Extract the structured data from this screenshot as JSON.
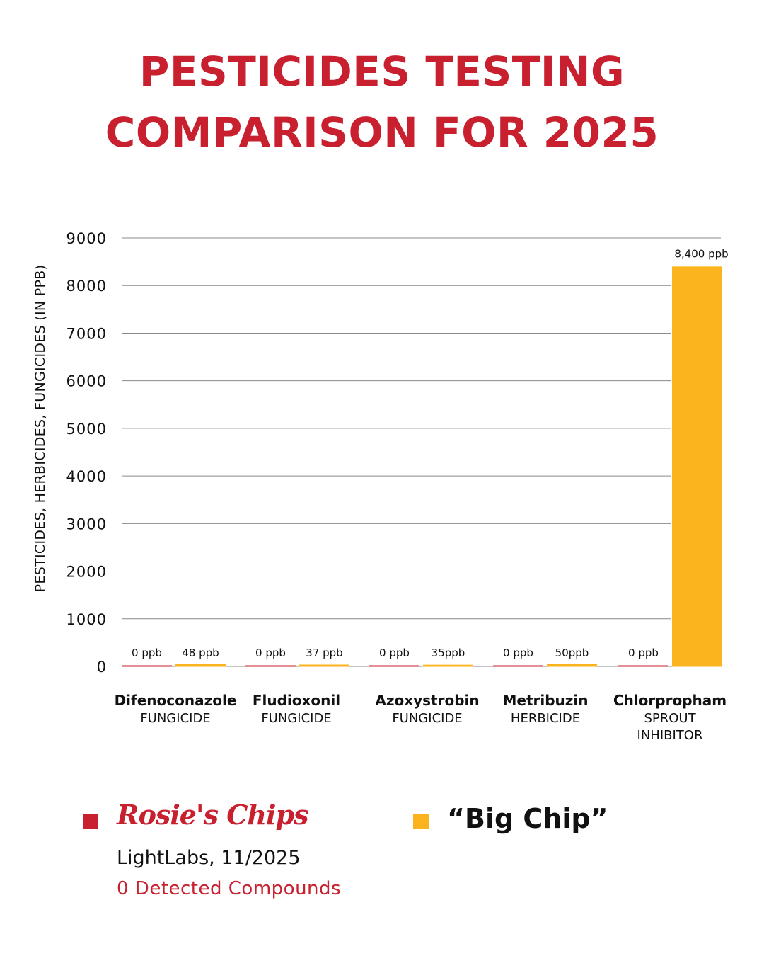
{
  "title": {
    "line1": "PESTICIDES TESTING",
    "line2": "COMPARISON FOR 2025"
  },
  "colors": {
    "title": "#c8202f",
    "rosies": "#c8202f",
    "bigchip": "#fbb41d",
    "grid": "#888888",
    "text": "#111111"
  },
  "chart_data": {
    "type": "bar",
    "title": "PESTICIDES TESTING COMPARISON FOR 2025",
    "xlabel": "",
    "ylabel": "PESTICIDES, HERBICIDES, FUNGICIDES (IN PPB)",
    "ylim": [
      0,
      9000
    ],
    "yticks": [
      0,
      1000,
      2000,
      3000,
      4000,
      5000,
      6000,
      7000,
      8000,
      9000
    ],
    "grid": true,
    "legend_position": "bottom",
    "categories": [
      {
        "name": "Difenoconazole",
        "type": "FUNGICIDE"
      },
      {
        "name": "Fludioxonil",
        "type": "FUNGICIDE"
      },
      {
        "name": "Azoxystrobin",
        "type": "FUNGICIDE"
      },
      {
        "name": "Metribuzin",
        "type": "HERBICIDE"
      },
      {
        "name": "Chlorpropham",
        "type": "SPROUT INHIBITOR",
        "type_lines": [
          "SPROUT",
          "INHIBITOR"
        ]
      }
    ],
    "series": [
      {
        "name": "Rosie's Chips",
        "color": "#c8202f",
        "values": [
          0,
          0,
          0,
          0,
          0
        ],
        "labels": [
          "0 ppb",
          "0 ppb",
          "0 ppb",
          "0 ppb",
          "0 ppb"
        ]
      },
      {
        "name": "“Big Chip”",
        "color": "#fbb41d",
        "values": [
          48,
          37,
          35,
          50,
          8400
        ],
        "labels": [
          "48 ppb",
          "37 ppb",
          "35ppb",
          "50ppb",
          "8,400 ppb"
        ]
      }
    ]
  },
  "legend": {
    "rosies": {
      "name": "Rosie's Chips",
      "source": "LightLabs, 11/2025",
      "detected": "0 Detected Compounds"
    },
    "bigchip": {
      "name": "“Big Chip”"
    }
  }
}
